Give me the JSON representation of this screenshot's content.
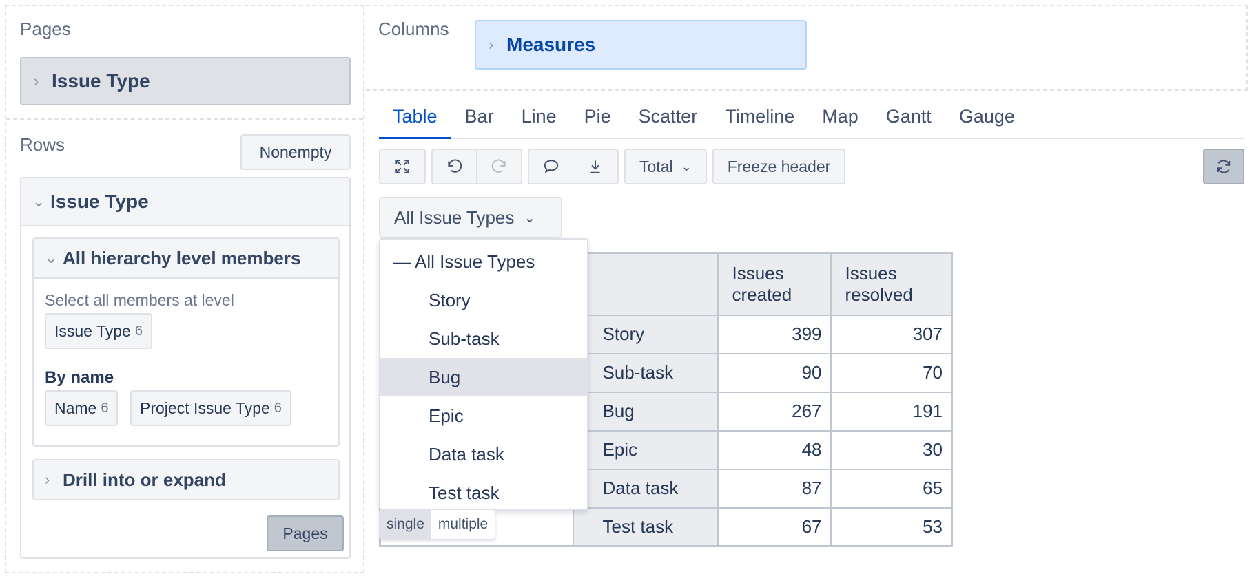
{
  "left_panel": {
    "pages_title": "Pages",
    "pages_chip": "Issue Type",
    "rows_title": "Rows",
    "nonempty_label": "Nonempty",
    "rows_dimension": "Issue Type",
    "hierarchy_header": "All hierarchy level members",
    "select_all_text": "Select all members at level",
    "level_tag": {
      "label": "Issue Type",
      "count": "6"
    },
    "by_name_label": "By name",
    "name_tags": [
      {
        "label": "Name",
        "count": "6"
      },
      {
        "label": "Project Issue Type",
        "count": "6"
      }
    ],
    "drill_label": "Drill into or expand",
    "pages_button": "Pages"
  },
  "columns": {
    "title": "Columns",
    "chip": "Measures"
  },
  "tabs": [
    "Table",
    "Bar",
    "Line",
    "Pie",
    "Scatter",
    "Timeline",
    "Map",
    "Gantt",
    "Gauge"
  ],
  "active_tab": "Table",
  "toolbar": {
    "total_label": "Total",
    "freeze_label": "Freeze header"
  },
  "filter": {
    "selected": "All Issue Types"
  },
  "dropdown": {
    "root": "All Issue Types",
    "items": [
      "Story",
      "Sub-task",
      "Bug",
      "Epic",
      "Data task",
      "Test task"
    ],
    "highlighted": "Bug"
  },
  "mode_toggle": {
    "single": "single",
    "multiple": "multiple",
    "selected": "single"
  },
  "table": {
    "headers": [
      "Issues created",
      "Issues resolved"
    ],
    "header_lines": [
      [
        "Issues",
        "created"
      ],
      [
        "Issues",
        "resolved"
      ]
    ],
    "rows": [
      {
        "label": "Story",
        "created": "399",
        "resolved": "307"
      },
      {
        "label": "Sub-task",
        "created": "90",
        "resolved": "70"
      },
      {
        "label": "Bug",
        "created": "267",
        "resolved": "191"
      },
      {
        "label": "Epic",
        "created": "48",
        "resolved": "30"
      },
      {
        "label": "Data task",
        "created": "87",
        "resolved": "65"
      },
      {
        "label": "Test task",
        "created": "67",
        "resolved": "53"
      }
    ]
  },
  "colors": {
    "accent": "#0052cc",
    "chip_blue": "#deebff",
    "panel_gray": "#f4f5f7"
  },
  "icons": [
    "chevron-right-icon",
    "chevron-down-icon",
    "expand-icon",
    "undo-icon",
    "redo-icon",
    "comment-icon",
    "download-icon",
    "refresh-icon"
  ]
}
